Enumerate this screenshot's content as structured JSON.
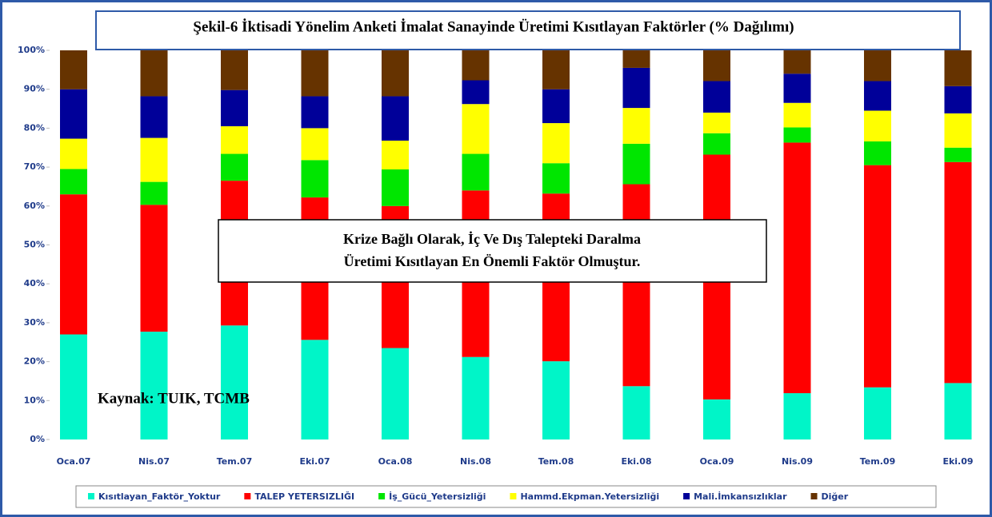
{
  "chart_data": {
    "type": "stacked_bar",
    "title": "Şekil-6 İktisadi Yönelim Anketi İmalat Sanayinde Üretimi Kısıtlayan Faktörler (% Dağılımı)",
    "annotation_lines": [
      "Krize Bağlı Olarak, İç Ve Dış Talepteki Daralma",
      "Üretimi Kısıtlayan En Önemli Faktör Olmuştur."
    ],
    "source": "Kaynak: TUIK, TCMB",
    "categories": [
      "Oca.07",
      "Nis.07",
      "Tem.07",
      "Eki.07",
      "Oca.08",
      "Nis.08",
      "Tem.08",
      "Eki.08",
      "Oca.09",
      "Nis.09",
      "Tem.09",
      "Eki.09"
    ],
    "series": [
      {
        "name": "Kısıtlayan_Faktör_Yoktur",
        "color": "#00f5c8",
        "values": [
          27,
          27.7,
          29.3,
          25.6,
          23.5,
          21.2,
          20.1,
          13.7,
          10.3,
          11.9,
          13.4,
          14.5
        ]
      },
      {
        "name": "TALEP YETERSIZLIĞI",
        "color": "#ff0000",
        "values": [
          36,
          32.6,
          37.2,
          36.6,
          36.5,
          42.8,
          43.1,
          51.9,
          62.9,
          64.4,
          57.1,
          56.8
        ]
      },
      {
        "name": "İş_Gücü_Yetersizliği",
        "color": "#00e600",
        "values": [
          6.5,
          5.9,
          6.9,
          9.6,
          9.4,
          9.4,
          7.8,
          10.4,
          5.5,
          3.9,
          6.1,
          3.7
        ]
      },
      {
        "name": "Hammd.Ekpman.Yetersizliği",
        "color": "#ffff00",
        "values": [
          7.8,
          11.3,
          7.1,
          8.2,
          7.4,
          12.8,
          10.3,
          9.2,
          5.3,
          6.3,
          7.9,
          8.8
        ]
      },
      {
        "name": "Mali.İmkansızlıklar",
        "color": "#000099",
        "values": [
          12.7,
          10.7,
          9.3,
          8.2,
          11.4,
          6.1,
          8.7,
          10.3,
          8.1,
          7.5,
          7.6,
          7
        ]
      },
      {
        "name": "Diğer",
        "color": "#663300",
        "values": [
          10,
          11.8,
          10.2,
          11.8,
          11.8,
          7.7,
          10,
          4.5,
          7.9,
          6,
          7.9,
          9.2
        ]
      }
    ],
    "ylim": [
      0,
      100
    ],
    "yticks": [
      {
        "value": 0,
        "label": "0%"
      },
      {
        "value": 10,
        "label": "10%"
      },
      {
        "value": 20,
        "label": "20%"
      },
      {
        "value": 30,
        "label": "30%"
      },
      {
        "value": 40,
        "label": "40%"
      },
      {
        "value": 50,
        "label": "50%"
      },
      {
        "value": 60,
        "label": "60%"
      },
      {
        "value": 70,
        "label": "70%"
      },
      {
        "value": 80,
        "label": "80%"
      },
      {
        "value": 90,
        "label": "90%"
      },
      {
        "value": 100,
        "label": "100%"
      }
    ],
    "grid": false,
    "legend": "bottom"
  }
}
